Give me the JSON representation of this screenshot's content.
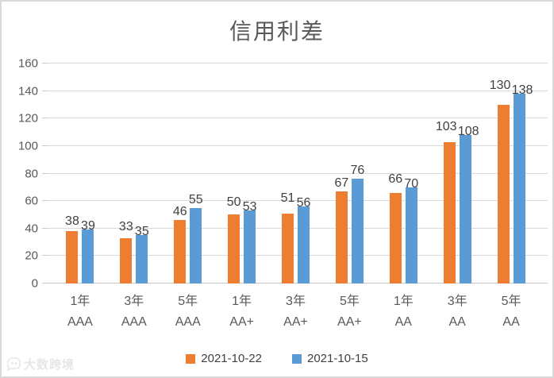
{
  "watermark": {
    "text": "大数跨境"
  },
  "colors": {
    "series1": "#ED7D31",
    "series2": "#5B9BD5",
    "gridline": "#D9D9D9",
    "axis_line": "#C6C6C6",
    "axis_text": "#595959",
    "data_label_text": "#404040",
    "title_text": "#595959",
    "frame_border": "#D9D9D9",
    "watermark_text": "#E7E7E7",
    "background": "#FFFFFF"
  },
  "chart_data": {
    "type": "bar",
    "title": "信用利差",
    "categories": [
      {
        "tenor": "1年",
        "rating": "AAA"
      },
      {
        "tenor": "3年",
        "rating": "AAA"
      },
      {
        "tenor": "5年",
        "rating": "AAA"
      },
      {
        "tenor": "1年",
        "rating": "AA+"
      },
      {
        "tenor": "3年",
        "rating": "AA+"
      },
      {
        "tenor": "5年",
        "rating": "AA+"
      },
      {
        "tenor": "1年",
        "rating": "AA"
      },
      {
        "tenor": "3年",
        "rating": "AA"
      },
      {
        "tenor": "5年",
        "rating": "AA"
      }
    ],
    "series": [
      {
        "name": "2021-10-22",
        "color": "#ED7D31",
        "values": [
          38,
          33,
          46,
          50,
          51,
          67,
          66,
          103,
          130
        ]
      },
      {
        "name": "2021-10-15",
        "color": "#5B9BD5",
        "values": [
          39,
          35,
          55,
          53,
          56,
          76,
          70,
          108,
          138
        ]
      }
    ],
    "xlabel": "",
    "ylabel": "",
    "ylim": [
      0,
      160
    ],
    "yticks": [
      0,
      20,
      40,
      60,
      80,
      100,
      120,
      140,
      160
    ],
    "grid": true,
    "data_labels": true,
    "legend_position": "bottom"
  }
}
